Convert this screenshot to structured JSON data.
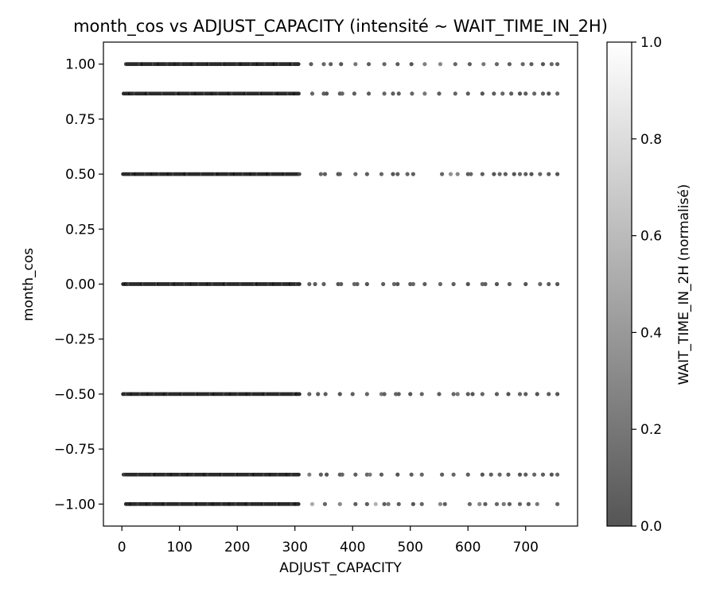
{
  "chart_data": {
    "type": "scatter",
    "title": "month_cos vs ADJUST_CAPACITY (intensité ~ WAIT_TIME_IN_2H)",
    "xlabel": "ADJUST_CAPACITY",
    "ylabel": "month_cos",
    "xlim": [
      -32,
      790
    ],
    "ylim": [
      -1.1,
      1.1
    ],
    "xticks": [
      0,
      100,
      200,
      300,
      400,
      500,
      600,
      700
    ],
    "xtick_labels": [
      "0",
      "100",
      "200",
      "300",
      "400",
      "500",
      "600",
      "700"
    ],
    "yticks": [
      1.0,
      0.75,
      0.5,
      0.25,
      0.0,
      -0.25,
      -0.5,
      -0.75,
      -1.0
    ],
    "ytick_labels": [
      "1.00",
      "0.75",
      "0.50",
      "0.25",
      "0.00",
      "−0.25",
      "−0.50",
      "−0.75",
      "−1.00"
    ],
    "grid": false,
    "color_encoding": "WAIT_TIME_IN_2H (normalised), grayscale colormap",
    "colorbar": {
      "label": "WAIT_TIME_IN_2H (normalisé)",
      "range": [
        0.0,
        1.0
      ],
      "ticks": [
        0.0,
        0.2,
        0.4,
        0.6,
        0.8,
        1.0
      ],
      "tick_labels": [
        "0.0",
        "0.2",
        "0.4",
        "0.6",
        "0.8",
        "1.0"
      ],
      "color_low": "#555555",
      "color_high": "#ffffff"
    },
    "point_color_dense": "#2b2b2b",
    "rows": [
      {
        "y": 1.0,
        "dense_range": [
          7,
          308
        ],
        "x_sparse": [
          328,
          350,
          362,
          380,
          405,
          428,
          455,
          478,
          502,
          525,
          552,
          578,
          603,
          627,
          650,
          672,
          695,
          710,
          730,
          745,
          755
        ],
        "c_sparse": [
          0.05,
          0.1,
          0.05,
          0.0,
          0.2,
          0.05,
          0.1,
          0.05,
          0.0,
          0.25,
          0.3,
          0.1,
          0.05,
          0.2,
          0.1,
          0.05,
          0.1,
          0.05,
          0.0,
          0.1,
          0.05
        ]
      },
      {
        "y": 0.866,
        "dense_range": [
          3,
          308
        ],
        "x_sparse": [
          330,
          350,
          355,
          378,
          382,
          403,
          428,
          455,
          470,
          480,
          503,
          525,
          550,
          578,
          600,
          625,
          645,
          660,
          675,
          690,
          700,
          715,
          730,
          740,
          755
        ],
        "c_sparse": [
          0.1,
          0.05,
          0.0,
          0.05,
          0.1,
          0.05,
          0.05,
          0.1,
          0.05,
          0.05,
          0.1,
          0.2,
          0.05,
          0.1,
          0.05,
          0.0,
          0.05,
          0.1,
          0.05,
          0.0,
          0.05,
          0.1,
          0.05,
          0.0,
          0.1
        ]
      },
      {
        "y": 0.5,
        "dense_range": [
          2,
          308
        ],
        "x_sparse": [
          345,
          352,
          375,
          378,
          405,
          425,
          450,
          470,
          478,
          495,
          505,
          555,
          570,
          582,
          600,
          605,
          625,
          645,
          655,
          665,
          680,
          690,
          700,
          710,
          725,
          740,
          755
        ],
        "c_sparse": [
          0.1,
          0.05,
          0.0,
          0.05,
          0.1,
          0.05,
          0.1,
          0.0,
          0.05,
          0.1,
          0.05,
          0.1,
          0.35,
          0.3,
          0.05,
          0.1,
          0.05,
          0.0,
          0.1,
          0.05,
          0.0,
          0.1,
          0.05,
          0.0,
          0.1,
          0.05,
          0.0
        ]
      },
      {
        "y": 0.0,
        "dense_range": [
          2,
          308
        ],
        "x_sparse": [
          325,
          335,
          350,
          375,
          380,
          403,
          408,
          425,
          453,
          472,
          478,
          500,
          505,
          525,
          552,
          575,
          600,
          625,
          630,
          650,
          672,
          700,
          725,
          740,
          755
        ],
        "c_sparse": [
          0.1,
          0.05,
          0.05,
          0.0,
          0.05,
          0.1,
          0.05,
          0.0,
          0.05,
          0.1,
          0.0,
          0.05,
          0.1,
          0.05,
          0.1,
          0.05,
          0.0,
          0.1,
          0.05,
          0.0,
          0.05,
          0.0,
          0.1,
          0.05,
          0.0
        ]
      },
      {
        "y": -0.5,
        "dense_range": [
          2,
          308
        ],
        "x_sparse": [
          325,
          340,
          353,
          378,
          400,
          425,
          450,
          455,
          475,
          480,
          500,
          520,
          550,
          575,
          582,
          600,
          608,
          625,
          650,
          670,
          690,
          700,
          720,
          740,
          755
        ],
        "c_sparse": [
          0.1,
          0.05,
          0.05,
          0.0,
          0.05,
          0.1,
          0.2,
          0.05,
          0.1,
          0.05,
          0.0,
          0.1,
          0.05,
          0.1,
          0.2,
          0.05,
          0.0,
          0.1,
          0.05,
          0.0,
          0.1,
          0.05,
          0.0,
          0.05,
          0.0
        ]
      },
      {
        "y": -0.866,
        "dense_range": [
          3,
          308
        ],
        "x_sparse": [
          325,
          345,
          355,
          378,
          382,
          405,
          425,
          430,
          450,
          478,
          502,
          520,
          555,
          575,
          600,
          625,
          640,
          655,
          670,
          690,
          700,
          715,
          730,
          745,
          755
        ],
        "c_sparse": [
          0.25,
          0.05,
          0.0,
          0.05,
          0.1,
          0.05,
          0.1,
          0.2,
          0.05,
          0.0,
          0.05,
          0.1,
          0.05,
          0.1,
          0.05,
          0.0,
          0.05,
          0.1,
          0.05,
          0.0,
          0.05,
          0.1,
          0.05,
          0.0,
          0.1
        ]
      },
      {
        "y": -1.0,
        "dense_range": [
          7,
          308
        ],
        "x_sparse": [
          330,
          352,
          378,
          405,
          425,
          440,
          455,
          462,
          480,
          505,
          520,
          552,
          560,
          603,
          620,
          630,
          650,
          662,
          672,
          690,
          705,
          720,
          755
        ],
        "c_sparse": [
          0.5,
          0.1,
          0.3,
          0.05,
          0.05,
          0.55,
          0.05,
          0.2,
          0.05,
          0.0,
          0.1,
          0.3,
          0.05,
          0.1,
          0.3,
          0.05,
          0.1,
          0.2,
          0.05,
          0.1,
          0.05,
          0.2,
          0.1
        ]
      }
    ]
  }
}
